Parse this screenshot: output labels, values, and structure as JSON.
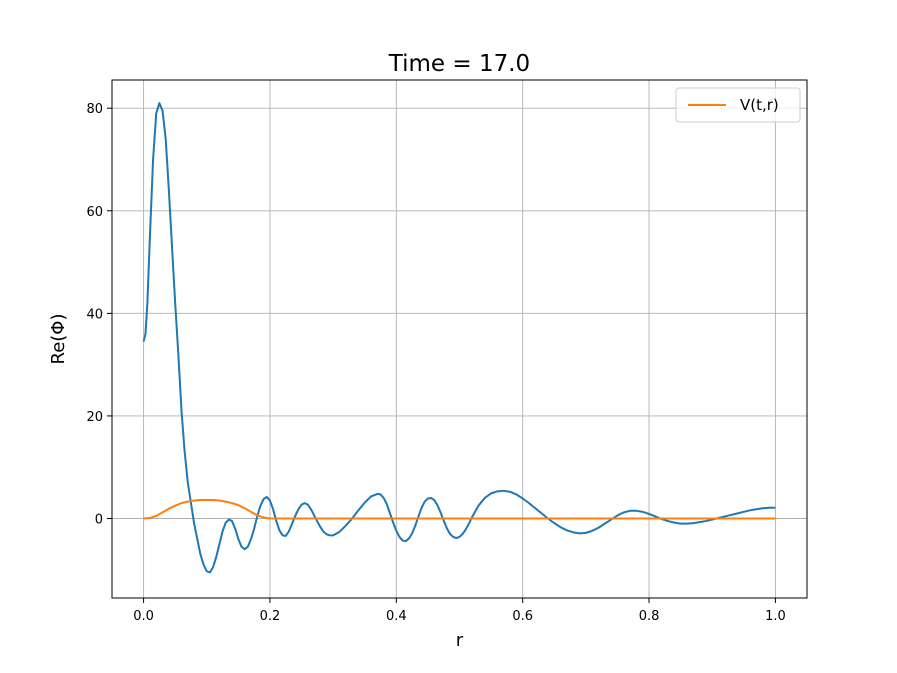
{
  "chart_data": {
    "type": "line",
    "title": "Time = 17.0",
    "xlabel": "r",
    "ylabel": "Re(Φ)",
    "xlim": [
      -0.05,
      1.05
    ],
    "ylim": [
      -15.5,
      85.5
    ],
    "xticks": [
      0.0,
      0.2,
      0.4,
      0.6,
      0.8,
      1.0
    ],
    "xtick_labels": [
      "0.0",
      "0.2",
      "0.4",
      "0.6",
      "0.8",
      "1.0"
    ],
    "yticks": [
      0,
      20,
      40,
      60,
      80
    ],
    "ytick_labels": [
      "0",
      "20",
      "40",
      "60",
      "80"
    ],
    "grid": true,
    "legend_position": "top-right",
    "colors": {
      "series1": "#1f77b4",
      "series2": "#ff7f0e",
      "grid": "#b0b0b0"
    },
    "series": [
      {
        "name": "",
        "color": "#1f77b4",
        "points": [
          [
            0.0,
            34.5
          ],
          [
            0.003,
            36
          ],
          [
            0.006,
            42
          ],
          [
            0.01,
            55
          ],
          [
            0.015,
            70
          ],
          [
            0.02,
            79
          ],
          [
            0.025,
            81
          ],
          [
            0.03,
            79.5
          ],
          [
            0.035,
            74
          ],
          [
            0.04,
            64
          ],
          [
            0.045,
            53
          ],
          [
            0.05,
            42
          ],
          [
            0.055,
            32
          ],
          [
            0.06,
            21
          ],
          [
            0.065,
            13
          ],
          [
            0.07,
            7
          ],
          [
            0.075,
            3
          ],
          [
            0.08,
            -1
          ],
          [
            0.085,
            -4
          ],
          [
            0.09,
            -7
          ],
          [
            0.095,
            -9
          ],
          [
            0.1,
            -10.3
          ],
          [
            0.105,
            -10.5
          ],
          [
            0.11,
            -9.5
          ],
          [
            0.115,
            -7.5
          ],
          [
            0.12,
            -5
          ],
          [
            0.125,
            -2.5
          ],
          [
            0.13,
            -0.8
          ],
          [
            0.135,
            -0.2
          ],
          [
            0.14,
            -0.5
          ],
          [
            0.145,
            -2
          ],
          [
            0.15,
            -4
          ],
          [
            0.155,
            -5.5
          ],
          [
            0.16,
            -6
          ],
          [
            0.165,
            -5.5
          ],
          [
            0.17,
            -4
          ],
          [
            0.175,
            -2
          ],
          [
            0.18,
            0.5
          ],
          [
            0.185,
            2.5
          ],
          [
            0.19,
            3.8
          ],
          [
            0.195,
            4.2
          ],
          [
            0.2,
            3.5
          ],
          [
            0.205,
            1.8
          ],
          [
            0.21,
            -0.5
          ],
          [
            0.215,
            -2.3
          ],
          [
            0.22,
            -3.3
          ],
          [
            0.225,
            -3.4
          ],
          [
            0.23,
            -2.5
          ],
          [
            0.235,
            -1
          ],
          [
            0.24,
            0.5
          ],
          [
            0.245,
            1.8
          ],
          [
            0.25,
            2.7
          ],
          [
            0.255,
            3
          ],
          [
            0.26,
            2.7
          ],
          [
            0.265,
            1.8
          ],
          [
            0.27,
            0.6
          ],
          [
            0.275,
            -0.6
          ],
          [
            0.28,
            -1.7
          ],
          [
            0.285,
            -2.6
          ],
          [
            0.29,
            -3.1
          ],
          [
            0.295,
            -3.3
          ],
          [
            0.3,
            -3.3
          ],
          [
            0.31,
            -2.6
          ],
          [
            0.32,
            -1.4
          ],
          [
            0.33,
            0
          ],
          [
            0.34,
            1.6
          ],
          [
            0.35,
            3.1
          ],
          [
            0.36,
            4.3
          ],
          [
            0.37,
            4.8
          ],
          [
            0.375,
            4.7
          ],
          [
            0.38,
            4
          ],
          [
            0.385,
            2.8
          ],
          [
            0.39,
            1
          ],
          [
            0.395,
            -0.8
          ],
          [
            0.4,
            -2.4
          ],
          [
            0.405,
            -3.6
          ],
          [
            0.41,
            -4.3
          ],
          [
            0.415,
            -4.4
          ],
          [
            0.42,
            -3.9
          ],
          [
            0.425,
            -2.9
          ],
          [
            0.43,
            -1.4
          ],
          [
            0.435,
            0.4
          ],
          [
            0.44,
            2.1
          ],
          [
            0.445,
            3.3
          ],
          [
            0.45,
            3.9
          ],
          [
            0.455,
            4
          ],
          [
            0.46,
            3.6
          ],
          [
            0.465,
            2.6
          ],
          [
            0.47,
            1.2
          ],
          [
            0.475,
            -0.4
          ],
          [
            0.48,
            -1.9
          ],
          [
            0.485,
            -3
          ],
          [
            0.49,
            -3.6
          ],
          [
            0.495,
            -3.8
          ],
          [
            0.5,
            -3.6
          ],
          [
            0.505,
            -3
          ],
          [
            0.51,
            -2.1
          ],
          [
            0.515,
            -1
          ],
          [
            0.52,
            0.3
          ],
          [
            0.53,
            2.5
          ],
          [
            0.54,
            4
          ],
          [
            0.55,
            4.9
          ],
          [
            0.56,
            5.3
          ],
          [
            0.57,
            5.4
          ],
          [
            0.58,
            5.2
          ],
          [
            0.59,
            4.7
          ],
          [
            0.6,
            3.9
          ],
          [
            0.61,
            3
          ],
          [
            0.62,
            2
          ],
          [
            0.63,
            1
          ],
          [
            0.64,
            0
          ],
          [
            0.65,
            -0.9
          ],
          [
            0.66,
            -1.7
          ],
          [
            0.67,
            -2.3
          ],
          [
            0.68,
            -2.7
          ],
          [
            0.69,
            -2.9
          ],
          [
            0.7,
            -2.8
          ],
          [
            0.71,
            -2.4
          ],
          [
            0.72,
            -1.8
          ],
          [
            0.73,
            -1
          ],
          [
            0.74,
            -0.2
          ],
          [
            0.75,
            0.6
          ],
          [
            0.76,
            1.2
          ],
          [
            0.77,
            1.5
          ],
          [
            0.78,
            1.5
          ],
          [
            0.79,
            1.3
          ],
          [
            0.8,
            0.9
          ],
          [
            0.81,
            0.4
          ],
          [
            0.82,
            -0.1
          ],
          [
            0.83,
            -0.5
          ],
          [
            0.84,
            -0.8
          ],
          [
            0.85,
            -1
          ],
          [
            0.86,
            -1
          ],
          [
            0.87,
            -0.9
          ],
          [
            0.88,
            -0.7
          ],
          [
            0.89,
            -0.5
          ],
          [
            0.9,
            -0.2
          ],
          [
            0.91,
            0.1
          ],
          [
            0.92,
            0.4
          ],
          [
            0.93,
            0.7
          ],
          [
            0.94,
            1
          ],
          [
            0.95,
            1.3
          ],
          [
            0.96,
            1.6
          ],
          [
            0.97,
            1.8
          ],
          [
            0.98,
            2
          ],
          [
            0.99,
            2.1
          ],
          [
            1.0,
            2.1
          ]
        ]
      },
      {
        "name": "V(t,r)",
        "color": "#ff7f0e",
        "points": [
          [
            0.0,
            0
          ],
          [
            0.01,
            0.1
          ],
          [
            0.02,
            0.5
          ],
          [
            0.03,
            1.2
          ],
          [
            0.04,
            1.9
          ],
          [
            0.05,
            2.5
          ],
          [
            0.06,
            3
          ],
          [
            0.07,
            3.3
          ],
          [
            0.08,
            3.5
          ],
          [
            0.09,
            3.6
          ],
          [
            0.1,
            3.6
          ],
          [
            0.11,
            3.6
          ],
          [
            0.12,
            3.5
          ],
          [
            0.13,
            3.3
          ],
          [
            0.14,
            3
          ],
          [
            0.15,
            2.6
          ],
          [
            0.16,
            2
          ],
          [
            0.17,
            1.3
          ],
          [
            0.18,
            0.6
          ],
          [
            0.19,
            0.2
          ],
          [
            0.2,
            0
          ],
          [
            0.3,
            0
          ],
          [
            0.4,
            0
          ],
          [
            0.5,
            0
          ],
          [
            0.6,
            0
          ],
          [
            0.7,
            0
          ],
          [
            0.8,
            0
          ],
          [
            0.9,
            0
          ],
          [
            1.0,
            0
          ]
        ]
      }
    ]
  }
}
